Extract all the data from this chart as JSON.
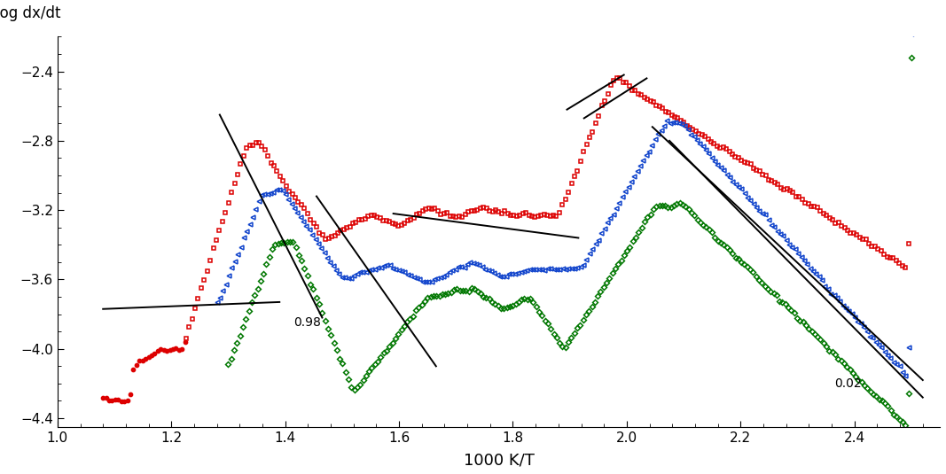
{
  "xlim": [
    1.0,
    2.55
  ],
  "ylim": [
    -4.45,
    -2.2
  ],
  "xlabel": "1000 K/T",
  "ylabel": "log dx/dt",
  "xticks": [
    1.0,
    1.2,
    1.4,
    1.6,
    1.8,
    2.0,
    2.2,
    2.4
  ],
  "yticks": [
    -4.4,
    -4.0,
    -3.6,
    -3.2,
    -2.8,
    -2.4
  ],
  "background_color": "#ffffff",
  "red_color": "#dd0000",
  "blue_color": "#1144cc",
  "green_color": "#007700",
  "black_color": "#000000",
  "annotation_098": "0.98",
  "annotation_002": "0.02",
  "line_width": 1.4,
  "marker_size": 3.5
}
